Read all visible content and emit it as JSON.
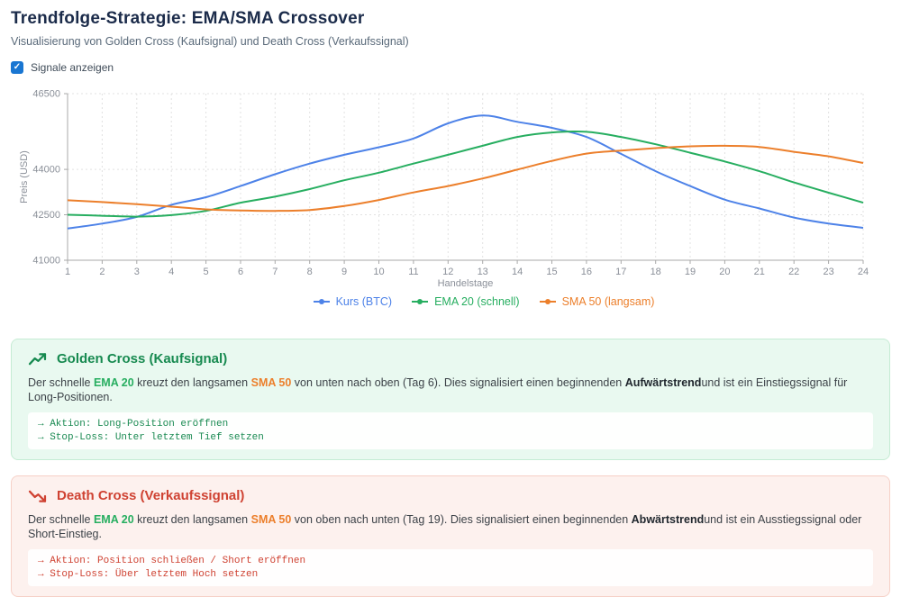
{
  "header": {
    "title": "Trendfolge-Strategie: EMA/SMA Crossover",
    "subtitle": "Visualisierung von Golden Cross (Kaufsignal) und Death Cross (Verkaufssignal)"
  },
  "controls": {
    "signals_checkbox_label": "Signale anzeigen",
    "signals_checkbox_checked": true,
    "check_glyph": "✓"
  },
  "colors": {
    "checkbox_blue": "#1976d2",
    "title_navy": "#1b2b4a",
    "golden_green": "#178a50",
    "death_red": "#cf4232"
  },
  "chart_data": {
    "type": "line",
    "x": [
      1,
      2,
      3,
      4,
      5,
      6,
      7,
      8,
      9,
      10,
      11,
      12,
      13,
      14,
      15,
      16,
      17,
      18,
      19,
      20,
      21,
      22,
      23,
      24
    ],
    "series": [
      {
        "name": "Kurs (BTC)",
        "color": "#4d82e8",
        "values": [
          42050,
          42210,
          42430,
          42830,
          43080,
          43450,
          43840,
          44190,
          44480,
          44730,
          45020,
          45520,
          45780,
          45570,
          45370,
          45070,
          44510,
          43940,
          43450,
          43000,
          42710,
          42410,
          42210,
          42070
        ]
      },
      {
        "name": "EMA 20 (schnell)",
        "color": "#27ae60",
        "values": [
          42500,
          42470,
          42440,
          42490,
          42630,
          42900,
          43100,
          43350,
          43640,
          43890,
          44190,
          44480,
          44780,
          45070,
          45220,
          45240,
          45070,
          44830,
          44550,
          44260,
          43940,
          43570,
          43230,
          42900
        ]
      },
      {
        "name": "SMA 50 (langsam)",
        "color": "#ec7f2b",
        "values": [
          42980,
          42920,
          42850,
          42770,
          42680,
          42640,
          42630,
          42660,
          42790,
          42990,
          43240,
          43450,
          43700,
          43990,
          44280,
          44520,
          44620,
          44700,
          44760,
          44780,
          44740,
          44580,
          44430,
          44210
        ]
      }
    ],
    "title": "",
    "xlabel": "Handelstage",
    "ylabel": "Preis (USD)",
    "ylim": [
      41000,
      46500
    ],
    "yticks": [
      41000,
      42500,
      44000,
      46500
    ],
    "grid": true,
    "legend_position": "bottom"
  },
  "golden_cross": {
    "icon": "trend-up-icon",
    "title": "Golden Cross (Kaufsignal)",
    "desc_prefix": "Der schnelle ",
    "ema_label": "EMA 20",
    "desc_mid1": " kreuzt den langsamen ",
    "sma_label": "SMA 50",
    "desc_mid2": " von unten nach oben (Tag 6). Dies signalisiert einen beginnenden ",
    "trend_bold": "Aufwärtstrend",
    "desc_suffix": "und ist ein Einstiegssignal für Long-Positionen.",
    "code_line1": "→ Aktion: Long-Position eröffnen",
    "code_line2": "→ Stop-Loss: Unter letztem Tief setzen"
  },
  "death_cross": {
    "icon": "trend-down-icon",
    "title": "Death Cross (Verkaufssignal)",
    "desc_prefix": "Der schnelle ",
    "ema_label": "EMA 20",
    "desc_mid1": " kreuzt den langsamen ",
    "sma_label": "SMA 50",
    "desc_mid2": " von oben nach unten (Tag 19). Dies signalisiert einen beginnenden ",
    "trend_bold": "Abwärtstrend",
    "desc_suffix": "und ist ein Ausstiegssignal oder Short-Einstieg.",
    "code_line1": "→ Aktion: Position schließen / Short eröffnen",
    "code_line2": "→ Stop-Loss: Über letztem Hoch setzen"
  }
}
